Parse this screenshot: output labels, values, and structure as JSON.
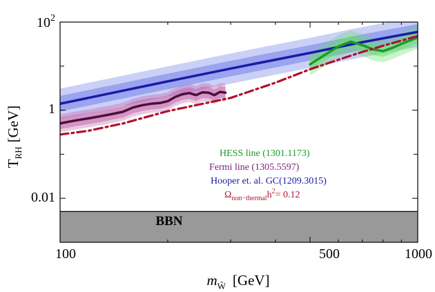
{
  "chart_data": {
    "type": "line",
    "x_scale": "log",
    "y_scale": "log",
    "xlim": [
      100,
      1000
    ],
    "ylim": [
      0.001,
      100
    ],
    "xlabel": "m_W̃ [GeV]",
    "xlabel_parts": {
      "symbol": "m",
      "sub": "W̃",
      "unit": "[GeV]"
    },
    "ylabel": "T_RH [GeV]",
    "ylabel_parts": {
      "symbol": "T",
      "sub": "RH",
      "unit": "[GeV]"
    },
    "x_ticks": [
      {
        "value": 100,
        "label": "100"
      },
      {
        "value": 500,
        "label": "500"
      },
      {
        "value": 1000,
        "label": "1000"
      }
    ],
    "y_ticks": [
      {
        "value": 100,
        "label": "10",
        "sup": "2"
      },
      {
        "value": 1,
        "label": "1",
        "sup": ""
      },
      {
        "value": 0.01,
        "label": "0.01",
        "sup": ""
      }
    ],
    "bbn_region": {
      "label": "BBN",
      "y_max": 0.005,
      "color": "#999999"
    },
    "series": [
      {
        "name": "Hooper et. al. GC(1209.3015)",
        "color": "#1a1aa6",
        "band_color": "#6a78e8",
        "x": [
          100,
          200,
          300,
          400,
          500,
          700,
          1000
        ],
        "values": [
          1.4,
          4.5,
          8.8,
          14.0,
          20.0,
          35.0,
          60.0
        ],
        "inner_factor": 1.5,
        "outer_factor": 2.2
      },
      {
        "name": "Fermi line (1305.5597)",
        "color": "#4a0f3a",
        "band_color": "#c060a8",
        "x": [
          100,
          110,
          120,
          130,
          140,
          150,
          160,
          170,
          180,
          190,
          200,
          210,
          220,
          230,
          240,
          250,
          260,
          270,
          280,
          290
        ],
        "values": [
          0.5,
          0.58,
          0.65,
          0.73,
          0.82,
          0.92,
          1.15,
          1.3,
          1.4,
          1.45,
          1.6,
          2.0,
          2.3,
          2.45,
          2.2,
          2.55,
          2.5,
          2.2,
          2.6,
          2.5
        ],
        "inner_factor": 1.35,
        "outer_factor": 1.6
      },
      {
        "name": "HESS line (1301.1173)",
        "color": "#1a9a28",
        "band_color": "#66e066",
        "x": [
          500,
          550,
          600,
          650,
          700,
          750,
          800,
          850,
          900,
          950,
          1000
        ],
        "values": [
          11.0,
          18.0,
          28.0,
          36.0,
          30.0,
          24.0,
          22.0,
          26.0,
          32.0,
          38.0,
          45.0
        ],
        "inner_factor": 1.35,
        "outer_factor": 1.8
      },
      {
        "name": "Ω_non-thermal h² = 0.12",
        "legend_parts": {
          "omega": "Ω",
          "sub": "non−thermal",
          "h": "h",
          "sup": "2",
          "eq": "= 0.12"
        },
        "color": "#b0102e",
        "style": "dash-dot",
        "x": [
          100,
          120,
          150,
          200,
          300,
          400,
          500,
          600,
          700,
          800,
          900,
          1000
        ],
        "values": [
          0.28,
          0.34,
          0.5,
          0.95,
          1.9,
          4.2,
          8.5,
          14.0,
          21.0,
          29.0,
          38.0,
          48.0
        ]
      }
    ]
  }
}
